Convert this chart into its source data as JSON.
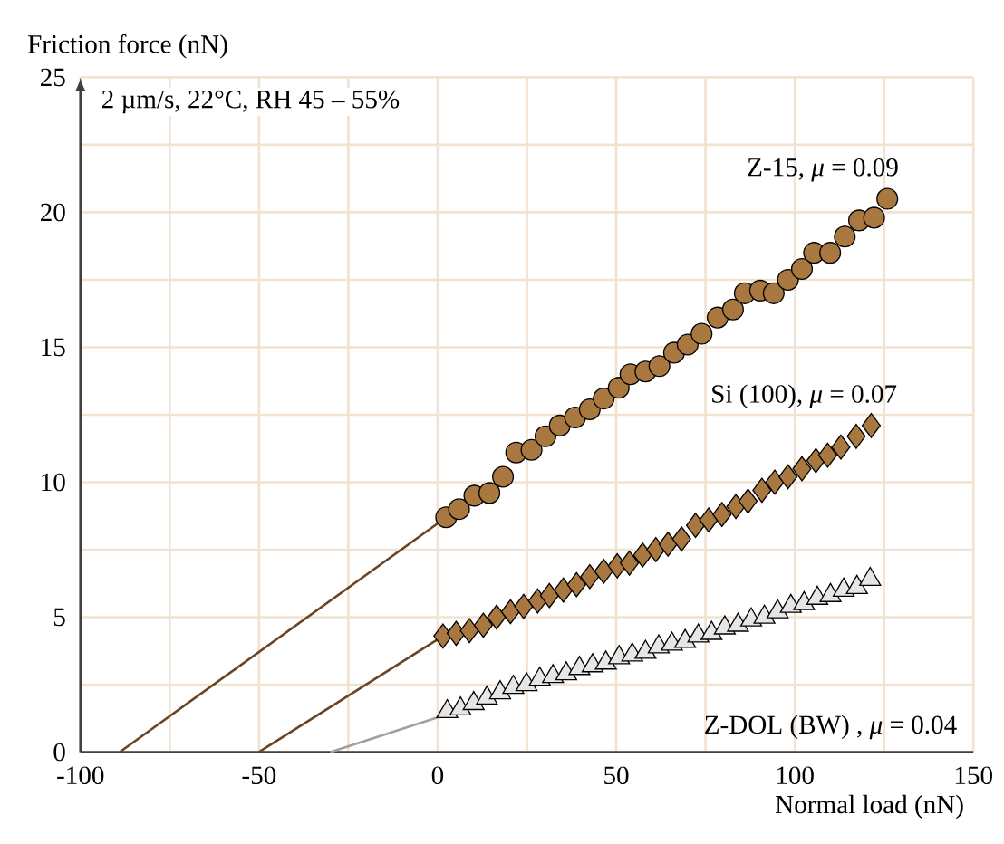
{
  "chart_data": {
    "type": "scatter",
    "xlabel": "Normal load (nN)",
    "ylabel": "Friction force (nN)",
    "xlim": [
      -100,
      150
    ],
    "ylim": [
      0,
      25
    ],
    "xticks": [
      -100,
      -50,
      0,
      50,
      100,
      150
    ],
    "yticks": [
      0,
      5,
      10,
      15,
      20,
      25
    ],
    "grid": true,
    "annotations": [
      "2 µm/s, 22°C, RH 45 – 55%"
    ],
    "series": [
      {
        "type": "line",
        "color": "#6b4423",
        "marker": "none",
        "x": [
          -89,
          2.4
        ],
        "values": [
          0,
          8.7
        ]
      },
      {
        "type": "line",
        "color": "#6b4423",
        "marker": "none",
        "x": [
          -50,
          1.5
        ],
        "values": [
          0,
          4.3
        ]
      },
      {
        "type": "line",
        "color": "#a0a0a0",
        "marker": "none",
        "x": [
          -30,
          2.7
        ],
        "values": [
          0,
          1.4
        ]
      },
      {
        "name": "Z-15, *μ* = 0.09",
        "color": "#a87840",
        "marker": "circle",
        "x": [
          2.4,
          6,
          10.3,
          14.5,
          18.3,
          22,
          26.3,
          30.2,
          34.2,
          38.5,
          42.6,
          46.5,
          50.7,
          54,
          58.2,
          62.1,
          66.2,
          70,
          73.9,
          78.4,
          82.7,
          86,
          90.3,
          94.1,
          98.1,
          102,
          105.4,
          109.9,
          114,
          118,
          122.2,
          125.9
        ],
        "values": [
          8.7,
          9.0,
          9.5,
          9.6,
          10.2,
          11.1,
          11.2,
          11.7,
          12.1,
          12.4,
          12.7,
          13.1,
          13.5,
          14.0,
          14.1,
          14.3,
          14.8,
          15.1,
          15.5,
          16.1,
          16.4,
          17.0,
          17.1,
          17.0,
          17.5,
          17.9,
          18.5,
          18.5,
          19.1,
          19.7,
          19.8,
          20.5
        ]
      },
      {
        "name": "Si (100), *μ* = 0.07",
        "color": "#a87840",
        "marker": "diamond",
        "x": [
          1.5,
          5.2,
          8.9,
          12.8,
          16.5,
          20.4,
          24.1,
          28,
          31.3,
          35.2,
          38.9,
          42.6,
          46.5,
          50.3,
          53.7,
          57.4,
          61.1,
          64.5,
          68.3,
          72.2,
          75.9,
          79.6,
          83.5,
          86.9,
          90.8,
          94.4,
          98.1,
          102,
          105.9,
          109.2,
          112.9,
          117.2,
          121.4
        ],
        "values": [
          4.3,
          4.4,
          4.5,
          4.7,
          5.0,
          5.2,
          5.4,
          5.6,
          5.8,
          6.0,
          6.2,
          6.5,
          6.7,
          6.9,
          7.0,
          7.3,
          7.5,
          7.7,
          7.9,
          8.4,
          8.6,
          8.8,
          9.1,
          9.3,
          9.7,
          10.0,
          10.2,
          10.5,
          10.8,
          11.0,
          11.3,
          11.7,
          12.1
        ]
      },
      {
        "name": "Z-DOL (BW) , *μ* = 0.04",
        "color": "#e6e6e6",
        "marker": "triangle",
        "x": [
          2.7,
          6.4,
          10.1,
          13.8,
          17.5,
          21.2,
          24.9,
          28.6,
          32.3,
          36,
          39.7,
          43.4,
          47.1,
          50.8,
          54.5,
          58.2,
          61.9,
          65.6,
          69.3,
          73,
          76.7,
          80.4,
          84.1,
          87.8,
          91.5,
          95.2,
          98.9,
          102.6,
          106.3,
          110,
          113.7,
          117.4,
          121.1
        ],
        "values": [
          1.5,
          1.6,
          1.8,
          2.0,
          2.2,
          2.4,
          2.5,
          2.7,
          2.8,
          2.9,
          3.1,
          3.2,
          3.3,
          3.5,
          3.6,
          3.7,
          3.9,
          4.0,
          4.1,
          4.3,
          4.4,
          4.6,
          4.7,
          4.9,
          5.0,
          5.2,
          5.4,
          5.5,
          5.7,
          5.8,
          6.0,
          6.1,
          6.4
        ]
      }
    ]
  }
}
